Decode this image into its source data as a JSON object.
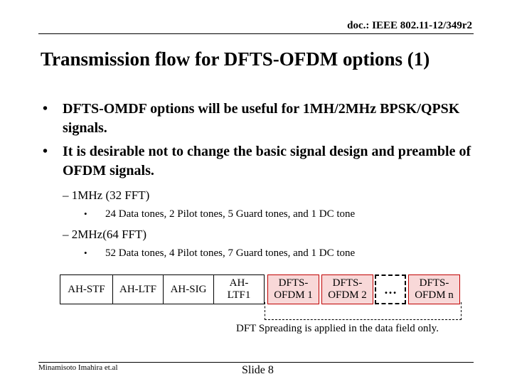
{
  "header": {
    "doc_id": "doc.: IEEE 802.11-12/349r2"
  },
  "title": "Transmission flow for DFTS-OFDM options (1)",
  "bullets": [
    "DFTS-OMDF options will be useful for 1MH/2MHz BPSK/QPSK signals.",
    "It is desirable not to change the basic signal design and preamble of OFDM signals."
  ],
  "sub_items": [
    {
      "label": "– 1MHz (32 FFT)",
      "detail": "24 Data tones, 2 Pilot tones, 5 Guard tones, and 1 DC tone"
    },
    {
      "label": "– 2MHz(64 FFT)",
      "detail": "52 Data tones, 4 Pilot tones, 7 Guard tones, and 1 DC tone"
    }
  ],
  "bullet_symbol": "•",
  "fields": [
    "AH-STF",
    "AH-LTF",
    "AH-SIG",
    "AH-LTF1",
    "DFTS-OFDM 1",
    "DFTS-OFDM 2",
    "…",
    "DFTS-OFDM n"
  ],
  "field_lines": {
    "ltf1": [
      "AH-",
      "LTF1"
    ],
    "dfts1": [
      "DFTS-",
      "OFDM 1"
    ],
    "dfts2": [
      "DFTS-",
      "OFDM 2"
    ],
    "dftsn": [
      "DFTS-",
      "OFDM n"
    ]
  },
  "note": "DFT Spreading is applied in the data field only.",
  "footer": {
    "author": "Minamisoto Imahira et.al",
    "slide": "Slide 8"
  },
  "colors": {
    "highlight_fill": "#f8d8d8",
    "highlight_border": "#c00000"
  }
}
